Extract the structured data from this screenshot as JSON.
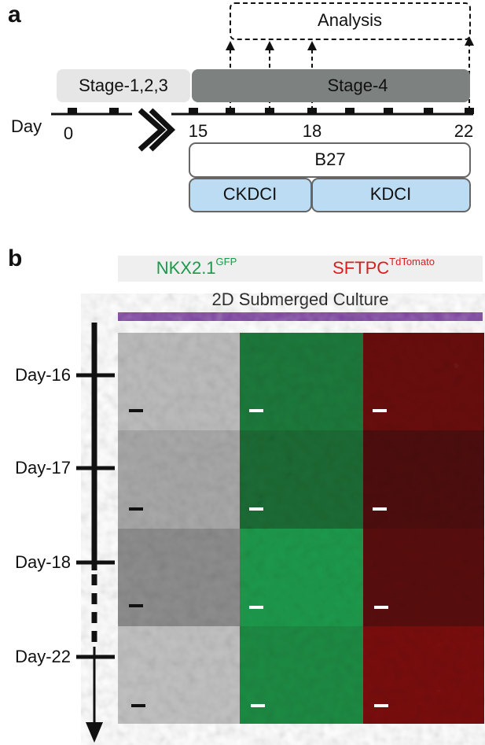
{
  "panel_a": {
    "label": "a",
    "analysis": "Analysis",
    "stages": [
      "Stage-1,2,3",
      "Stage-4"
    ],
    "day_label": "Day",
    "days": [
      "0",
      "15",
      "18",
      "22"
    ],
    "media": {
      "top": "B27",
      "left": "CKDCI",
      "right": "KDCI"
    }
  },
  "panel_b": {
    "label": "b",
    "markers": [
      {
        "name": "NKX2.1",
        "sup": "GFP"
      },
      {
        "name": "SFTPC",
        "sup": "TdTomato"
      }
    ],
    "culture": "2D Submerged Culture",
    "days": [
      "Day-16",
      "Day-17",
      "Day-18",
      "Day-22"
    ]
  }
}
